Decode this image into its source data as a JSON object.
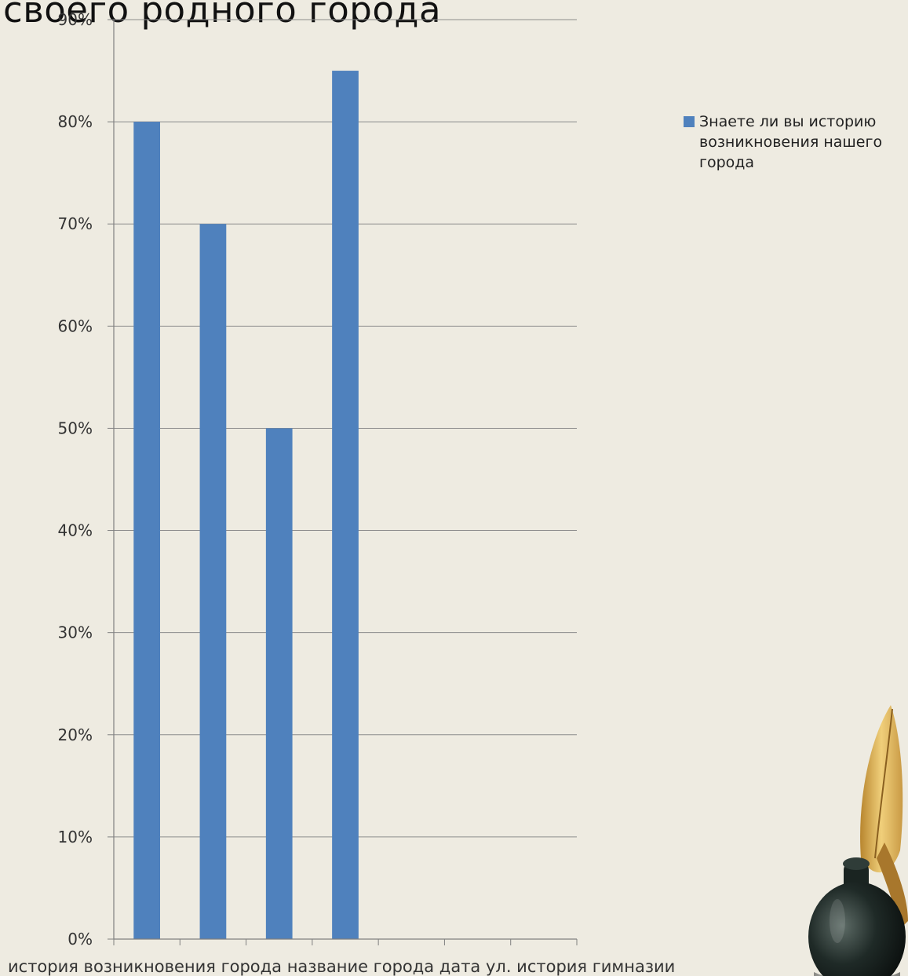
{
  "slide": {
    "title": "своего родного города"
  },
  "legend": {
    "label": "Знаете ли вы  историю возникновения нашего города"
  },
  "colors": {
    "bar": "#4f81bd",
    "grid": "#8c8c8c",
    "axis": "#808080",
    "text": "#333333"
  },
  "chart_data": {
    "type": "bar",
    "title": "",
    "xlabel": "",
    "ylabel": "",
    "ylim": [
      0,
      0.9
    ],
    "grid": true,
    "legend_position": "right",
    "y_tick_labels": [
      "0%",
      "10%",
      "20%",
      "30%",
      "40%",
      "50%",
      "60%",
      "70%",
      "80%",
      "90%"
    ],
    "categories": [
      "история возникновения города",
      "название города",
      "дата",
      "ул.",
      "история гимназии",
      "",
      ""
    ],
    "x_tick_text": "история возникновения города название города дата ул. история гимназии",
    "series": [
      {
        "name": "Знаете ли вы  историю возникновения нашего города",
        "values": [
          0.8,
          0.7,
          0.5,
          0.85,
          null,
          null,
          null
        ]
      }
    ]
  }
}
